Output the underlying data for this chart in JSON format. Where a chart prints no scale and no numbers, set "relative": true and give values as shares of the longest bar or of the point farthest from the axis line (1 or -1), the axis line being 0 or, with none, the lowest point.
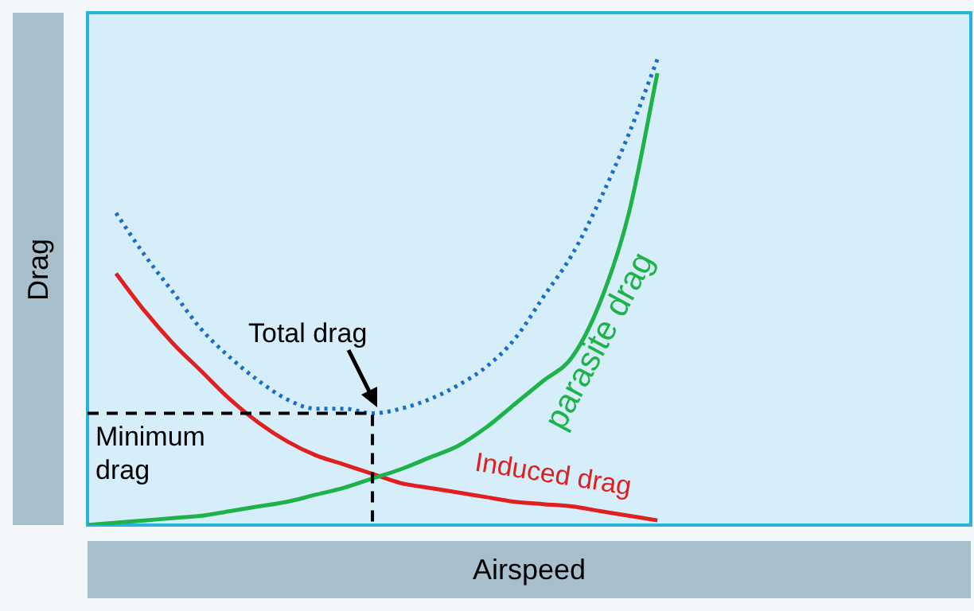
{
  "chart_data": {
    "type": "line",
    "relative": true,
    "xlabel": "Airspeed",
    "ylabel": "Drag",
    "marker": "none",
    "categories": [
      null,
      null,
      null,
      null,
      null,
      null,
      null,
      null,
      null,
      null,
      null,
      null,
      null,
      null,
      null,
      null,
      null,
      null,
      null,
      null,
      null,
      null,
      null,
      null,
      null,
      null,
      null,
      null,
      null,
      null,
      null,
      null
    ],
    "series": [
      {
        "name": "parasite drag",
        "color": "#1db34a",
        "line_style": "solid",
        "values": [
          0,
          0.005,
          0.01,
          0.015,
          0.02,
          0.03,
          0.04,
          0.05,
          0.065,
          0.08,
          0.1,
          0.12,
          0.145,
          0.17,
          0.21,
          0.26,
          0.31,
          0.36,
          0.48,
          0.67,
          0.97,
          null,
          null,
          null,
          null,
          null,
          null,
          null,
          null,
          null,
          null,
          null
        ]
      },
      {
        "name": "Induced drag",
        "color": "#e02020",
        "line_style": "solid",
        "values": [
          null,
          0.54,
          0.46,
          0.39,
          0.33,
          0.27,
          0.22,
          0.18,
          0.15,
          0.13,
          0.11,
          0.09,
          0.08,
          0.07,
          0.06,
          0.05,
          0.045,
          0.04,
          0.03,
          0.02,
          0.01,
          null,
          null,
          null,
          null,
          null,
          null,
          null,
          null,
          null,
          null,
          null
        ]
      },
      {
        "color": "#1a6fc4",
        "line_style": "dotted",
        "values": [
          null,
          0.67,
          0.58,
          0.5,
          0.42,
          0.36,
          0.31,
          0.27,
          0.25,
          0.25,
          0.24,
          0.25,
          0.27,
          0.3,
          0.34,
          0.4,
          0.49,
          0.58,
          0.7,
          0.84,
          1,
          null,
          null,
          null,
          null,
          null,
          null,
          null,
          null,
          null,
          null,
          null
        ]
      }
    ],
    "ref_lines": [
      {
        "axis": "y",
        "value": 0.24,
        "label": "Minimum drag",
        "color": "#000000",
        "line_style": "dashed"
      }
    ],
    "annotations": [
      "Total drag"
    ]
  }
}
